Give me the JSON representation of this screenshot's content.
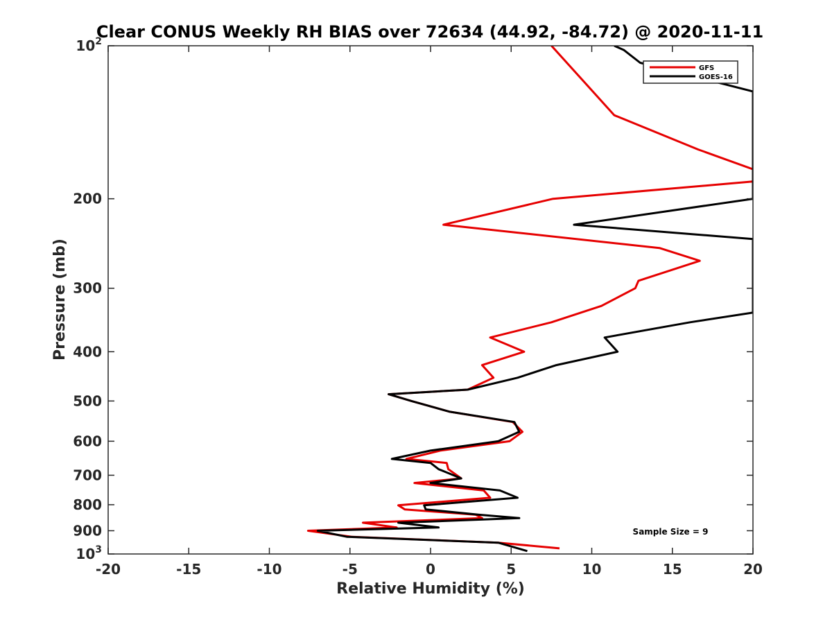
{
  "chart_data": {
    "type": "line",
    "title": "Clear CONUS Weekly RH BIAS over 72634 (44.92, -84.72) @ 2020-11-11",
    "xlabel": "Relative Humidity (%)",
    "ylabel": "Pressure (mb)",
    "xlim": [
      -20,
      20
    ],
    "ylim": [
      100,
      1000
    ],
    "yscale": "log",
    "y_reversed": true,
    "grid": false,
    "legend_position": "top-right",
    "x_ticks": [
      -20,
      -15,
      -10,
      -5,
      0,
      5,
      10,
      15,
      20
    ],
    "x_tick_labels": [
      "-20",
      "-15",
      "-10",
      "-5",
      "0",
      "5",
      "10",
      "15",
      "20"
    ],
    "y_ticks": [
      100,
      200,
      300,
      400,
      500,
      600,
      700,
      800,
      900,
      1000
    ],
    "y_tick_labels": [
      {
        "base": "10",
        "exp": "2"
      },
      {
        "base": "200",
        "exp": ""
      },
      {
        "base": "300",
        "exp": ""
      },
      {
        "base": "400",
        "exp": ""
      },
      {
        "base": "500",
        "exp": ""
      },
      {
        "base": "600",
        "exp": ""
      },
      {
        "base": "700",
        "exp": ""
      },
      {
        "base": "800",
        "exp": ""
      },
      {
        "base": "900",
        "exp": ""
      },
      {
        "base": "10",
        "exp": "3"
      }
    ],
    "series": [
      {
        "name": "GFS",
        "color": "#e60000",
        "points": [
          [
            8.0,
            975
          ],
          [
            4.2,
            950
          ],
          [
            -4.9,
            925
          ],
          [
            -7.6,
            900
          ],
          [
            -2.1,
            887
          ],
          [
            -4.2,
            868
          ],
          [
            3.2,
            850
          ],
          [
            2.8,
            837
          ],
          [
            -1.6,
            817
          ],
          [
            -2.0,
            802
          ],
          [
            3.7,
            775
          ],
          [
            3.3,
            750
          ],
          [
            -1.0,
            725
          ],
          [
            1.9,
            710
          ],
          [
            1.1,
            681
          ],
          [
            1.0,
            662
          ],
          [
            -1.5,
            650
          ],
          [
            0.6,
            626
          ],
          [
            4.9,
            600
          ],
          [
            5.7,
            575
          ],
          [
            5.1,
            550
          ],
          [
            1.2,
            525
          ],
          [
            -1.2,
            500
          ],
          [
            -2.6,
            485
          ],
          [
            2.3,
            475
          ],
          [
            3.9,
            450
          ],
          [
            3.2,
            425
          ],
          [
            5.8,
            400
          ],
          [
            3.7,
            375
          ],
          [
            7.5,
            350
          ],
          [
            10.6,
            325
          ],
          [
            12.7,
            300
          ],
          [
            12.9,
            290
          ],
          [
            16.7,
            265
          ],
          [
            14.2,
            250
          ],
          [
            0.8,
            225
          ],
          [
            7.6,
            200
          ],
          [
            20,
            185
          ],
          [
            20,
            175
          ],
          [
            16.6,
            160
          ],
          [
            11.4,
            137
          ],
          [
            7.5,
            100
          ]
        ]
      },
      {
        "name": "GOES-16",
        "color": "#000000",
        "points": [
          [
            6.0,
            987
          ],
          [
            4.2,
            950
          ],
          [
            -5.2,
            925
          ],
          [
            -7.0,
            900
          ],
          [
            0.5,
            887
          ],
          [
            -2.0,
            868
          ],
          [
            5.5,
            850
          ],
          [
            3.0,
            837
          ],
          [
            -0.3,
            817
          ],
          [
            -0.4,
            802
          ],
          [
            5.4,
            775
          ],
          [
            4.3,
            750
          ],
          [
            0.0,
            725
          ],
          [
            1.9,
            710
          ],
          [
            0.5,
            681
          ],
          [
            0.0,
            662
          ],
          [
            -2.4,
            650
          ],
          [
            0.0,
            626
          ],
          [
            4.2,
            600
          ],
          [
            5.5,
            575
          ],
          [
            5.2,
            550
          ],
          [
            1.2,
            525
          ],
          [
            -1.2,
            500
          ],
          [
            -2.6,
            485
          ],
          [
            2.3,
            475
          ],
          [
            5.4,
            450
          ],
          [
            7.8,
            425
          ],
          [
            11.6,
            400
          ],
          [
            10.8,
            375
          ],
          [
            16.1,
            350
          ],
          [
            20,
            335
          ],
          [
            20,
            240
          ],
          [
            8.9,
            225
          ],
          [
            20,
            200
          ],
          [
            20,
            123
          ],
          [
            13,
            108
          ],
          [
            12,
            102
          ],
          [
            11.4,
            100
          ]
        ]
      }
    ],
    "annotation": "Sample Size = 9"
  }
}
